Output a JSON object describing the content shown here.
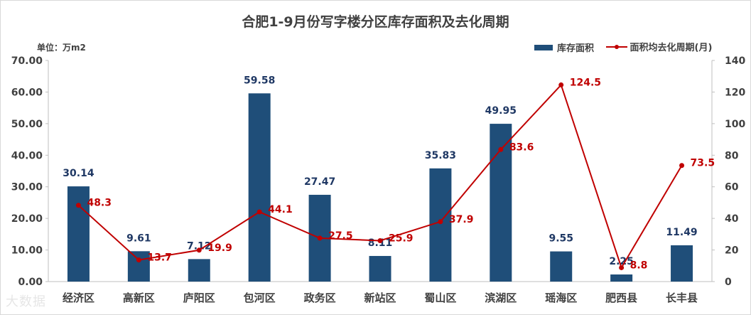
{
  "chart_data": {
    "type": "bar",
    "title": "合肥1-9月份写字楼分区库存面积及去化周期",
    "unit_label": "单位：万m2",
    "categories": [
      "经济区",
      "高新区",
      "庐阳区",
      "包河区",
      "政务区",
      "新站区",
      "蜀山区",
      "滨湖区",
      "瑶海区",
      "肥西县",
      "长丰县"
    ],
    "series": [
      {
        "name": "库存面积",
        "kind": "bar",
        "axis": "left",
        "color": "#1f4e79",
        "values": [
          30.14,
          9.61,
          7.12,
          59.58,
          27.47,
          8.11,
          35.83,
          49.95,
          9.55,
          2.25,
          11.49
        ],
        "labels": [
          "30.14",
          "9.61",
          "7.12",
          "59.58",
          "27.47",
          "8.11",
          "35.83",
          "49.95",
          "9.55",
          "2.25",
          "11.49"
        ]
      },
      {
        "name": "面积均去化周期(月)",
        "kind": "line",
        "axis": "right",
        "color": "#c00000",
        "values": [
          48.3,
          13.7,
          19.9,
          44.1,
          27.5,
          25.9,
          37.9,
          83.6,
          124.5,
          8.8,
          73.5
        ],
        "labels": [
          "48.3",
          "13.7",
          "19.9",
          "44.1",
          "27.5",
          "25.9",
          "37.9",
          "83.6",
          "124.5",
          "8.8",
          "73.5"
        ]
      }
    ],
    "y_left": {
      "ylim": [
        0,
        70
      ],
      "ticks": [
        "0.00",
        "10.00",
        "20.00",
        "30.00",
        "40.00",
        "50.00",
        "60.00",
        "70.00"
      ]
    },
    "y_right": {
      "ylim": [
        0,
        140
      ],
      "ticks": [
        "0",
        "20",
        "40",
        "60",
        "80",
        "100",
        "120",
        "140"
      ]
    },
    "grid": false,
    "legend_position": "top-right"
  },
  "watermark": "大数据"
}
